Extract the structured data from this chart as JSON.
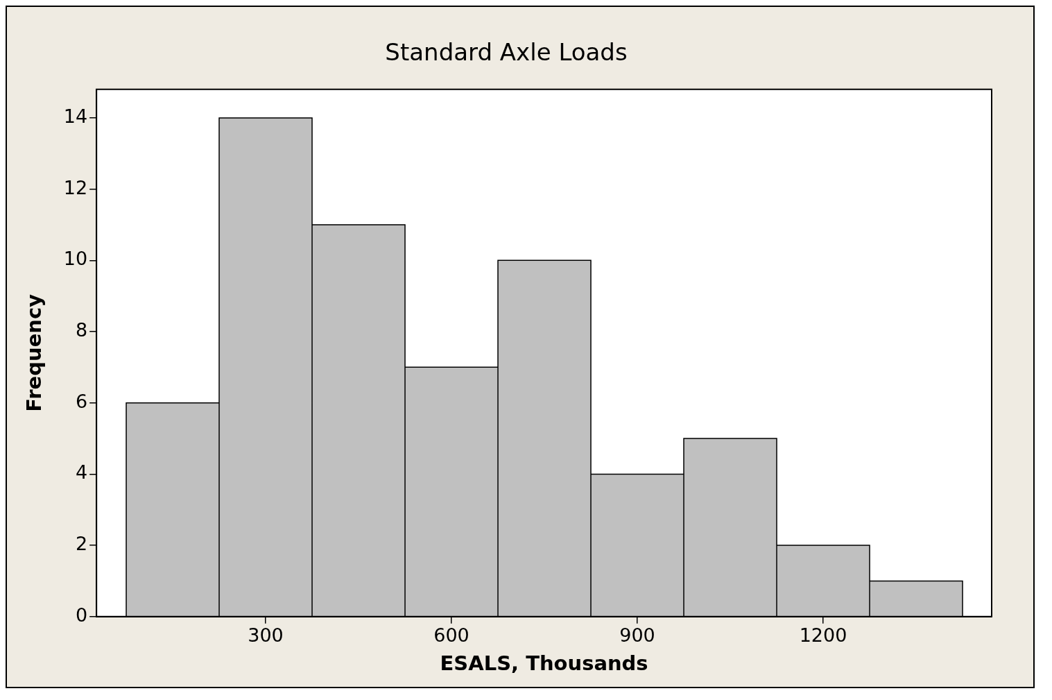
{
  "chart_data": {
    "type": "histogram",
    "title": "Standard Axle Loads",
    "xlabel": "ESALS, Thousands",
    "ylabel": "Frequency",
    "bins": [
      75,
      225,
      375,
      525,
      675,
      825,
      975,
      1125,
      1275,
      1425
    ],
    "values": [
      6,
      14,
      11,
      7,
      10,
      4,
      5,
      2,
      1
    ],
    "color": "#c0c0c0",
    "xlim": [
      27,
      1472
    ],
    "xticks": [
      300,
      600,
      900,
      1200
    ],
    "ylim": [
      0,
      14.8
    ],
    "yticks": [
      0,
      2,
      4,
      6,
      8,
      10,
      12,
      14
    ],
    "grid": false,
    "legend": false
  }
}
